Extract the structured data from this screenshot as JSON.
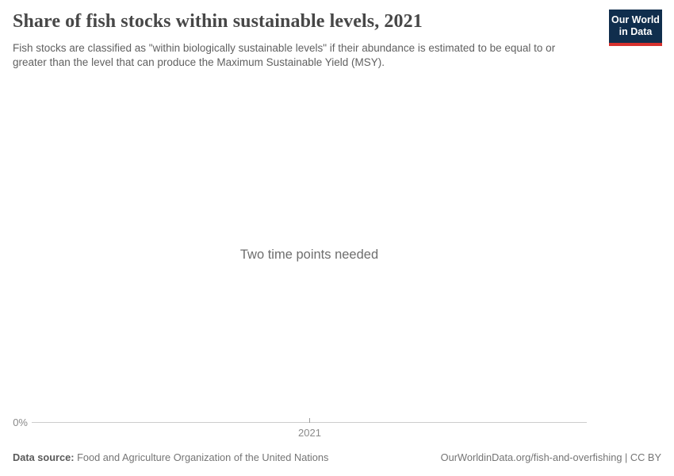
{
  "header": {
    "title": "Share of fish stocks within sustainable levels, 2021",
    "subtitle": "Fish stocks are classified as \"within biologically sustainable levels\" if their abundance is estimated to be equal to or greater than the level that can produce the Maximum Sustainable Yield (MSY).",
    "logo": {
      "line1": "Our World",
      "line2": "in Data",
      "bg_color": "#102e4d",
      "accent_color": "#d7312e"
    }
  },
  "chart": {
    "empty_message": "Two time points needed",
    "y_tick_label": "0%",
    "x_tick_label": "2021",
    "axis_color": "#cdcdcd"
  },
  "chart_data": {
    "type": "line",
    "title": "Share of fish stocks within sustainable levels, 2021",
    "subtitle": "Fish stocks are classified as \"within biologically sustainable levels\" if their abundance is estimated to be equal to or greater than the level that can produce the Maximum Sustainable Yield (MSY).",
    "x_ticks": [
      "2021"
    ],
    "y_ticks": [
      "0%"
    ],
    "series": [],
    "annotations": [
      "Two time points needed"
    ],
    "grid": false,
    "legend": "none"
  },
  "footer": {
    "data_source_label": "Data source:",
    "data_source_value": " Food and Agriculture Organization of the United Nations",
    "credit": "OurWorldinData.org/fish-and-overfishing | CC BY"
  }
}
